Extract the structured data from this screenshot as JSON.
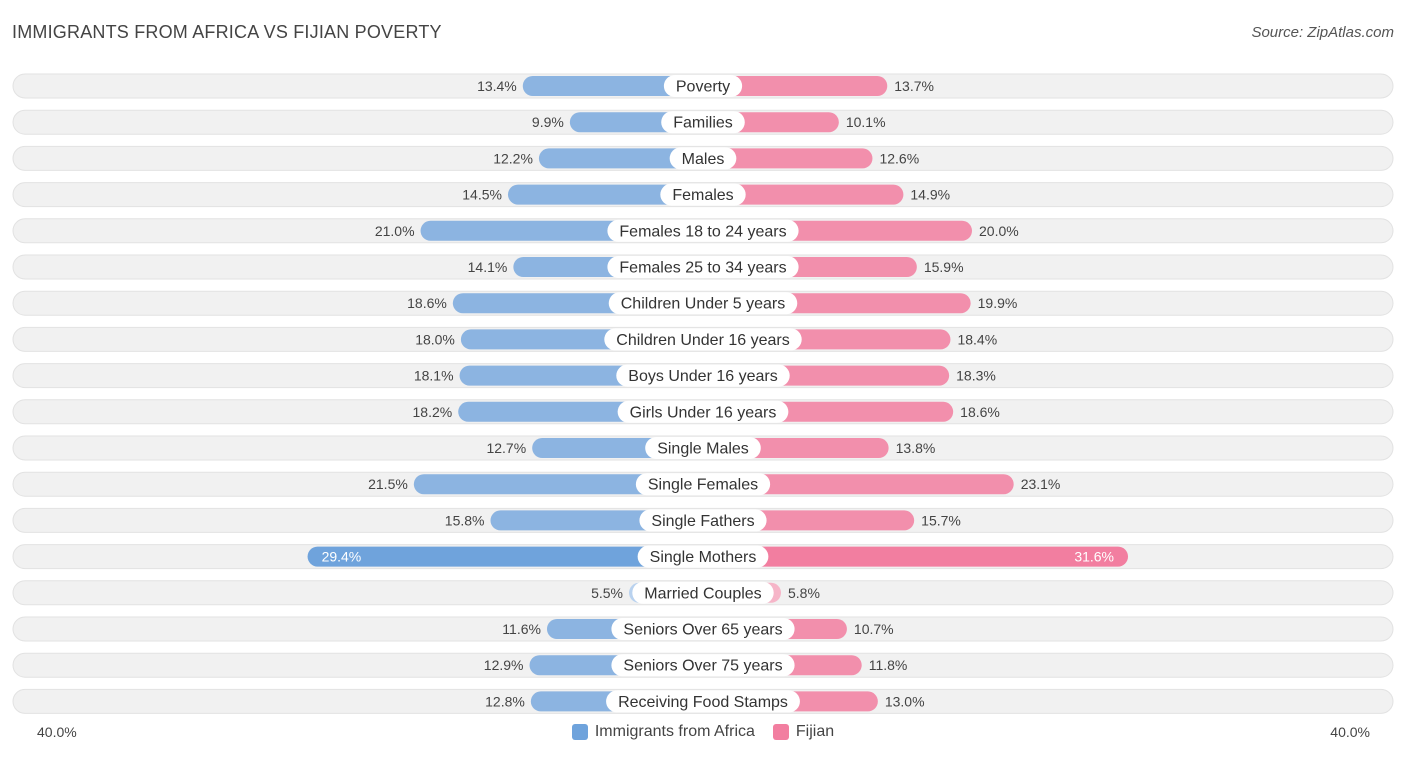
{
  "title": "IMMIGRANTS FROM AFRICA VS FIJIAN POVERTY",
  "source": "Source: ZipAtlas.com",
  "colors": {
    "left": "#6fa3dc",
    "left_light": "#a9c9ee",
    "right": "#f27ea0",
    "right_light": "#f7aac1",
    "track": "#efefef"
  },
  "chart_data": {
    "type": "bar",
    "orientation": "horizontal-diverging",
    "title": "IMMIGRANTS FROM AFRICA VS FIJIAN POVERTY",
    "axis_min_label": "40.0%",
    "axis_max_label": "40.0%",
    "xlim": [
      -40,
      40
    ],
    "legend": [
      "Immigrants from Africa",
      "Fijian"
    ],
    "legend_position": "bottom-center",
    "categories": [
      "Poverty",
      "Families",
      "Males",
      "Females",
      "Females 18 to 24 years",
      "Females 25 to 34 years",
      "Children Under 5 years",
      "Children Under 16 years",
      "Boys Under 16 years",
      "Girls Under 16 years",
      "Single Males",
      "Single Females",
      "Single Fathers",
      "Single Mothers",
      "Married Couples",
      "Seniors Over 65 years",
      "Seniors Over 75 years",
      "Receiving Food Stamps"
    ],
    "series": [
      {
        "name": "Immigrants from Africa",
        "values": [
          13.4,
          9.9,
          12.2,
          14.5,
          21.0,
          14.1,
          18.6,
          18.0,
          18.1,
          18.2,
          12.7,
          21.5,
          15.8,
          29.4,
          5.5,
          11.6,
          12.9,
          12.8
        ],
        "labels": [
          "13.4%",
          "9.9%",
          "12.2%",
          "14.5%",
          "21.0%",
          "14.1%",
          "18.6%",
          "18.0%",
          "18.1%",
          "18.2%",
          "12.7%",
          "21.5%",
          "15.8%",
          "29.4%",
          "5.5%",
          "11.6%",
          "12.9%",
          "12.8%"
        ]
      },
      {
        "name": "Fijian",
        "values": [
          13.7,
          10.1,
          12.6,
          14.9,
          20.0,
          15.9,
          19.9,
          18.4,
          18.3,
          18.6,
          13.8,
          23.1,
          15.7,
          31.6,
          5.8,
          10.7,
          11.8,
          13.0
        ],
        "labels": [
          "13.7%",
          "10.1%",
          "12.6%",
          "14.9%",
          "20.0%",
          "15.9%",
          "19.9%",
          "18.4%",
          "18.3%",
          "18.6%",
          "13.8%",
          "23.1%",
          "15.7%",
          "31.6%",
          "5.8%",
          "10.7%",
          "11.8%",
          "13.0%"
        ]
      }
    ]
  }
}
